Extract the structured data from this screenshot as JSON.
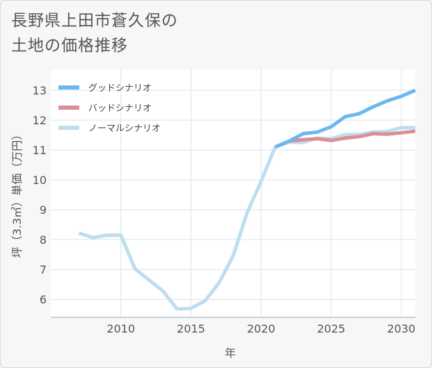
{
  "title_line1": "長野県上田市蒼久保の",
  "title_line2": "土地の価格推移",
  "chart_data": {
    "type": "line",
    "title": "長野県上田市蒼久保の土地の価格推移",
    "xlabel": "年",
    "ylabel": "坪（3.3㎡）単価（万円）",
    "xlim": [
      2005,
      2031
    ],
    "ylim": [
      5.4,
      13.7
    ],
    "x_ticks": [
      2010,
      2015,
      2020,
      2025,
      2030
    ],
    "y_ticks": [
      6,
      7,
      8,
      9,
      10,
      11,
      12,
      13
    ],
    "grid": true,
    "legend_position": "top-left",
    "series": [
      {
        "name": "グッドシナリオ",
        "color": "#6cb8ee",
        "x": [
          2021,
          2022,
          2023,
          2024,
          2025,
          2026,
          2027,
          2028,
          2029,
          2030,
          2031
        ],
        "y": [
          11.1,
          11.3,
          11.55,
          11.6,
          11.78,
          12.12,
          12.22,
          12.45,
          12.65,
          12.8,
          13.0
        ]
      },
      {
        "name": "バッドシナリオ",
        "color": "#db8f94",
        "x": [
          2021,
          2022,
          2023,
          2024,
          2025,
          2026,
          2027,
          2028,
          2029,
          2030,
          2031
        ],
        "y": [
          11.1,
          11.3,
          11.35,
          11.38,
          11.32,
          11.4,
          11.45,
          11.55,
          11.53,
          11.58,
          11.63
        ]
      },
      {
        "name": "ノーマルシナリオ",
        "color": "#bcdeef",
        "x": [
          2007,
          2008,
          2009,
          2010,
          2011,
          2012,
          2013,
          2014,
          2015,
          2016,
          2017,
          2018,
          2019,
          2020,
          2021,
          2022,
          2023,
          2024,
          2025,
          2026,
          2027,
          2028,
          2029,
          2030,
          2031
        ],
        "y": [
          8.22,
          8.07,
          8.15,
          8.15,
          7.03,
          6.65,
          6.28,
          5.68,
          5.7,
          5.95,
          6.55,
          7.45,
          8.9,
          9.95,
          11.1,
          11.27,
          11.25,
          11.4,
          11.38,
          11.52,
          11.52,
          11.6,
          11.62,
          11.75,
          11.75
        ]
      }
    ]
  }
}
